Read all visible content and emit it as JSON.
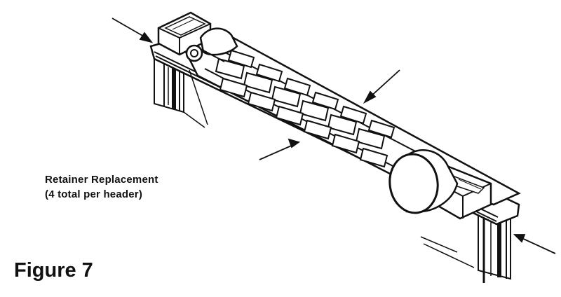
{
  "annotation": {
    "line1": "Retainer Replacement",
    "line2": "(4 total per header)"
  },
  "figure_title": "Figure 7",
  "colors": {
    "ink": "#111111",
    "background": "#ffffff"
  }
}
